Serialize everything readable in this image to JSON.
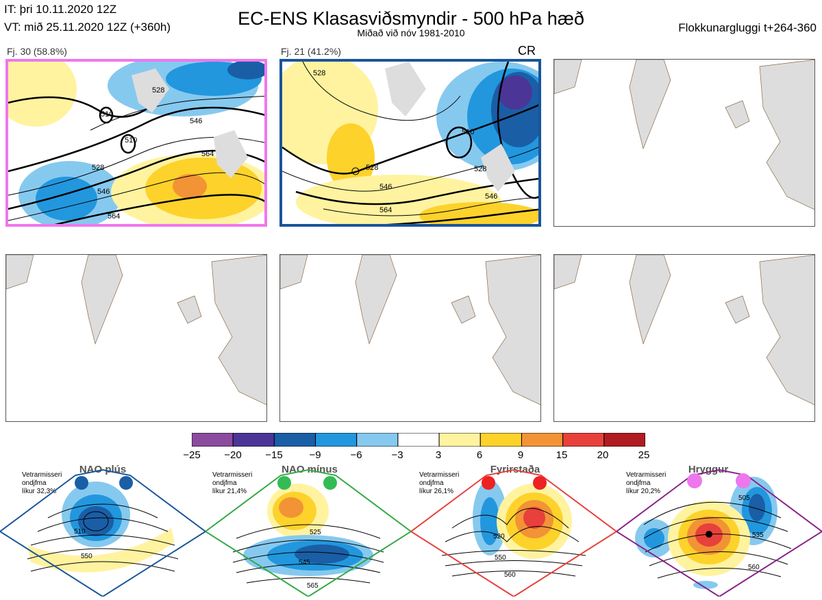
{
  "header": {
    "init_time": "IT: þri 10.11.2020 12Z",
    "valid_time": "VT: mið 25.11.2020 12Z  (+360h)",
    "title": "EC-ENS Klasasviðsmyndir - 500 hPa hæð",
    "subtitle": "Miðað við nóv 1981-2010",
    "window": "Flokkunargluggi t+264-360"
  },
  "clusters": [
    {
      "label": "Fj. 30 (58.8%)",
      "border_color": "#ee77ee",
      "contour_labels": [
        "528",
        "510",
        "546",
        "528",
        "564",
        "546",
        "564",
        "510"
      ]
    },
    {
      "label": "Fj. 21 (41.2%)",
      "border_color": "#1a5599",
      "regime_tag": "CR",
      "contour_labels": [
        "528",
        "510",
        "528",
        "546",
        "564",
        "528",
        "546"
      ]
    }
  ],
  "colorbar": {
    "ticks": [
      "−25",
      "−20",
      "−15",
      "−9",
      "−6",
      "−3",
      "3",
      "6",
      "9",
      "15",
      "20",
      "25"
    ],
    "colors": [
      "#8b4b9e",
      "#4b3597",
      "#1a5ea6",
      "#2297dd",
      "#86c9ef",
      "#ffffff",
      "#fff3a0",
      "#fdd22b",
      "#f29336",
      "#e8403b",
      "#b01c22"
    ]
  },
  "regimes": [
    {
      "name": "NAO plús",
      "note_line1": "Vetrarmisseri",
      "note_line2": "ondjfma",
      "note_line3": "líkur 32,3%",
      "color": "#1a5ea6",
      "dot_color": "#1a5ea6",
      "contour_labels": [
        "510",
        "550"
      ]
    },
    {
      "name": "NAO mínus",
      "note_line1": "Vetrarmisseri",
      "note_line2": "ondjfma",
      "note_line3": "líkur 21,4%",
      "color": "#33aa44",
      "dot_color": "#33bb55",
      "contour_labels": [
        "525",
        "545",
        "565"
      ]
    },
    {
      "name": "Fyrirstaða",
      "note_line1": "Vetrarmisseri",
      "note_line2": "ondjfma",
      "note_line3": "líkur 26,1%",
      "color": "#e8403b",
      "dot_color": "#ee2222",
      "contour_labels": [
        "520",
        "550",
        "560"
      ]
    },
    {
      "name": "Hryggur",
      "note_line1": "Vetrarmisseri",
      "note_line2": "ondjfma",
      "note_line3": "líkur 20,2%",
      "color": "#882288",
      "dot_color": "#ee77ee",
      "contour_labels": [
        "505",
        "535",
        "560"
      ]
    }
  ]
}
